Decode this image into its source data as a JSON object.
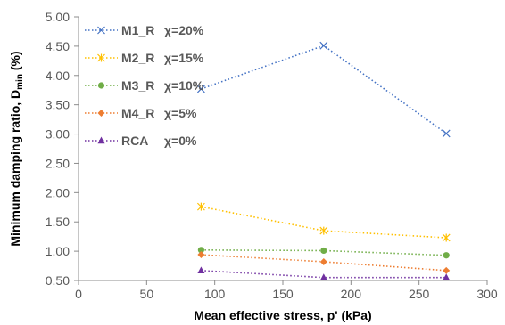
{
  "chart_data": {
    "type": "line",
    "xlabel": "Mean effective stress, p' (kPa)",
    "ylabel_main": "Minimum damping ratio, D",
    "ylabel_sub": "min",
    "ylabel_unit": " (%)",
    "xlim": [
      0,
      300
    ],
    "ylim": [
      0.5,
      5.0
    ],
    "x_ticks": [
      "0",
      "50",
      "100",
      "150",
      "200",
      "250",
      "300"
    ],
    "y_ticks": [
      "0.50",
      "1.00",
      "1.50",
      "2.00",
      "2.50",
      "3.00",
      "3.50",
      "4.00",
      "4.50",
      "5.00"
    ],
    "grid": false,
    "legend_position": "top-left",
    "series": [
      {
        "name": "M1_R",
        "chi": "χ=20%",
        "color": "#4472C4",
        "marker": "x",
        "x": [
          90,
          180,
          270
        ],
        "y": [
          3.77,
          4.51,
          3.01
        ]
      },
      {
        "name": "M2_R",
        "chi": "χ=15%",
        "color": "#FFC000",
        "marker": "asterisk",
        "x": [
          90,
          180,
          270
        ],
        "y": [
          1.76,
          1.35,
          1.23
        ]
      },
      {
        "name": "M3_R",
        "chi": "χ=10%",
        "color": "#70AD47",
        "marker": "circle",
        "x": [
          90,
          180,
          270
        ],
        "y": [
          1.02,
          1.01,
          0.93
        ]
      },
      {
        "name": "M4_R",
        "chi": "χ=5%",
        "color": "#ED7D31",
        "marker": "diamond",
        "x": [
          90,
          180,
          270
        ],
        "y": [
          0.94,
          0.82,
          0.67
        ]
      },
      {
        "name": "RCA",
        "chi": "χ=0%",
        "color": "#7030A0",
        "marker": "triangle",
        "x": [
          90,
          180,
          270
        ],
        "y": [
          0.67,
          0.55,
          0.55
        ]
      }
    ]
  }
}
